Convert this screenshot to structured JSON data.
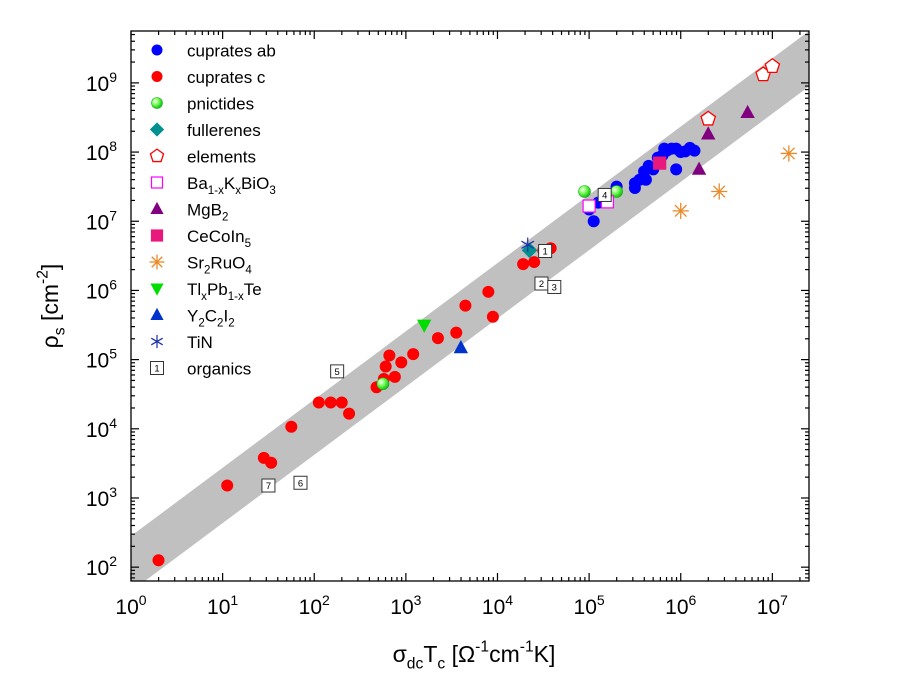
{
  "chart_data": {
    "type": "scatter",
    "scale": "log-log",
    "xlabel": {
      "base": "σ",
      "sub1": "dc",
      "mid": "T",
      "sub2": "c",
      "unit_open": " [Ω",
      "exp1": "-1",
      "mid2": "cm",
      "exp2": "-1",
      "unit_close": "K]"
    },
    "ylabel": {
      "base": "ρ",
      "sub": "s",
      "unit_open": " [cm",
      "exp": "-2",
      "unit_close": "]"
    },
    "xlim_log": [
      0,
      7.4
    ],
    "ylim_log": [
      1.8,
      9.75
    ],
    "x_ticks": [
      {
        "base": "10",
        "exp": "0",
        "log": 0
      },
      {
        "base": "10",
        "exp": "1",
        "log": 1
      },
      {
        "base": "10",
        "exp": "2",
        "log": 2
      },
      {
        "base": "10",
        "exp": "3",
        "log": 3
      },
      {
        "base": "10",
        "exp": "4",
        "log": 4
      },
      {
        "base": "10",
        "exp": "5",
        "log": 5
      },
      {
        "base": "10",
        "exp": "6",
        "log": 6
      },
      {
        "base": "10",
        "exp": "7",
        "log": 7
      }
    ],
    "y_ticks": [
      {
        "base": "10",
        "exp": "2",
        "log": 2
      },
      {
        "base": "10",
        "exp": "3",
        "log": 3
      },
      {
        "base": "10",
        "exp": "4",
        "log": 4
      },
      {
        "base": "10",
        "exp": "5",
        "log": 5
      },
      {
        "base": "10",
        "exp": "6",
        "log": 6
      },
      {
        "base": "10",
        "exp": "7",
        "log": 7
      },
      {
        "base": "10",
        "exp": "8",
        "log": 8
      },
      {
        "base": "10",
        "exp": "9",
        "log": 9
      }
    ],
    "band": {
      "description": "scaling band rho_s ~ sigma_dc*Tc",
      "color": "#c0c0c0",
      "lower_edge_log": [
        [
          0.0,
          1.65
        ],
        [
          7.4,
          8.95
        ]
      ],
      "upper_edge_log": [
        [
          0.0,
          2.45
        ],
        [
          7.4,
          9.75
        ]
      ]
    },
    "series": [
      {
        "name": "cuprates ab",
        "label_parts": [
          {
            "t": "cuprates ab"
          }
        ],
        "marker": "circle",
        "color": "#0000ff",
        "filled": true,
        "points": [
          [
            5.0,
            7.17
          ],
          [
            5.05,
            7.0
          ],
          [
            5.1,
            7.27
          ],
          [
            5.3,
            7.5
          ],
          [
            5.5,
            7.48
          ],
          [
            5.55,
            7.6
          ],
          [
            5.6,
            7.72
          ],
          [
            5.65,
            7.8
          ],
          [
            5.7,
            7.75
          ],
          [
            5.75,
            7.92
          ],
          [
            5.8,
            7.95
          ],
          [
            5.85,
            8.02
          ],
          [
            5.9,
            8.05
          ],
          [
            5.95,
            8.05
          ],
          [
            6.0,
            8.0
          ],
          [
            6.05,
            8.01
          ],
          [
            6.1,
            8.06
          ],
          [
            6.15,
            8.02
          ],
          [
            5.62,
            7.6
          ],
          [
            5.95,
            7.75
          ],
          [
            5.5,
            7.55
          ],
          [
            5.82,
            8.05
          ]
        ]
      },
      {
        "name": "cuprates c",
        "label_parts": [
          {
            "t": "cuprates c"
          }
        ],
        "marker": "circle",
        "color": "#ff0000",
        "filled": true,
        "points": [
          [
            0.3,
            2.1
          ],
          [
            1.05,
            3.18
          ],
          [
            1.45,
            3.58
          ],
          [
            1.53,
            3.51
          ],
          [
            1.75,
            4.03
          ],
          [
            2.05,
            4.38
          ],
          [
            2.18,
            4.38
          ],
          [
            2.3,
            4.38
          ],
          [
            2.38,
            4.22
          ],
          [
            2.68,
            4.6
          ],
          [
            2.76,
            4.72
          ],
          [
            2.78,
            4.9
          ],
          [
            2.82,
            5.06
          ],
          [
            2.88,
            4.75
          ],
          [
            2.95,
            4.96
          ],
          [
            3.08,
            5.08
          ],
          [
            3.35,
            5.31
          ],
          [
            3.55,
            5.39
          ],
          [
            3.65,
            5.78
          ],
          [
            3.9,
            5.98
          ],
          [
            3.95,
            5.62
          ],
          [
            4.28,
            6.38
          ],
          [
            4.4,
            6.41
          ],
          [
            4.5,
            6.58
          ],
          [
            4.58,
            6.61
          ]
        ]
      },
      {
        "name": "pnictides",
        "label_parts": [
          {
            "t": "pnictides"
          }
        ],
        "marker": "sphere",
        "color": "#22dd22",
        "filled": true,
        "points": [
          [
            2.75,
            4.65
          ],
          [
            4.95,
            7.43
          ],
          [
            5.3,
            7.43
          ]
        ]
      },
      {
        "name": "fullerenes",
        "label_parts": [
          {
            "t": "fullerenes"
          }
        ],
        "marker": "diamond",
        "color": "#009090",
        "filled": true,
        "points": [
          [
            4.35,
            6.58
          ]
        ]
      },
      {
        "name": "elements",
        "label_parts": [
          {
            "t": "elements"
          }
        ],
        "marker": "pentagon",
        "color": "#ff0000",
        "filled": false,
        "points": [
          [
            6.3,
            8.48
          ],
          [
            6.9,
            9.12
          ],
          [
            7.0,
            9.24
          ]
        ]
      },
      {
        "name": "Ba1-xKxBiO3",
        "label_parts": [
          {
            "t": "Ba"
          },
          {
            "t": "1-x",
            "s": "sub"
          },
          {
            "t": "K"
          },
          {
            "t": "x",
            "s": "sub"
          },
          {
            "t": "BiO"
          },
          {
            "t": "3",
            "s": "sub"
          }
        ],
        "marker": "square",
        "color": "#ff00ff",
        "filled": false,
        "points": [
          [
            5.0,
            7.22
          ],
          [
            5.2,
            7.28
          ]
        ]
      },
      {
        "name": "MgB2",
        "label_parts": [
          {
            "t": "MgB"
          },
          {
            "t": "2",
            "s": "sub"
          }
        ],
        "marker": "triangle",
        "color": "#800080",
        "filled": true,
        "points": [
          [
            6.2,
            7.75
          ],
          [
            6.3,
            8.26
          ],
          [
            6.73,
            8.57
          ]
        ]
      },
      {
        "name": "CeCoIn5",
        "label_parts": [
          {
            "t": "CeCoIn"
          },
          {
            "t": "5",
            "s": "sub"
          }
        ],
        "marker": "square",
        "color": "#e8187c",
        "filled": true,
        "points": [
          [
            5.77,
            7.84
          ]
        ]
      },
      {
        "name": "Sr2RuO4",
        "label_parts": [
          {
            "t": "Sr"
          },
          {
            "t": "2",
            "s": "sub"
          },
          {
            "t": "RuO"
          },
          {
            "t": "4",
            "s": "sub"
          }
        ],
        "marker": "star",
        "color": "#e98a2a",
        "filled": false,
        "points": [
          [
            6.0,
            7.15
          ],
          [
            6.42,
            7.43
          ],
          [
            7.18,
            7.98
          ]
        ]
      },
      {
        "name": "TlxPb1-xTe",
        "label_parts": [
          {
            "t": "Tl"
          },
          {
            "t": "x",
            "s": "sub"
          },
          {
            "t": "Pb"
          },
          {
            "t": "1-x",
            "s": "sub"
          },
          {
            "t": "Te"
          }
        ],
        "marker": "triangle-down",
        "color": "#00dd00",
        "filled": true,
        "points": [
          [
            3.2,
            5.5
          ]
        ]
      },
      {
        "name": "Y2C2I2",
        "label_parts": [
          {
            "t": "Y"
          },
          {
            "t": "2",
            "s": "sub"
          },
          {
            "t": "C"
          },
          {
            "t": "2",
            "s": "sub"
          },
          {
            "t": "I"
          },
          {
            "t": "2",
            "s": "sub"
          }
        ],
        "marker": "triangle",
        "color": "#0033cc",
        "filled": true,
        "points": [
          [
            3.6,
            5.17
          ]
        ]
      },
      {
        "name": "TiN",
        "label_parts": [
          {
            "t": "TiN"
          }
        ],
        "marker": "asterisk",
        "color": "#1a2eaa",
        "filled": false,
        "points": [
          [
            4.33,
            6.66
          ]
        ]
      },
      {
        "name": "organics",
        "label_parts": [
          {
            "t": "organics"
          }
        ],
        "marker": "numbered-square",
        "color": "#333333",
        "filled": false,
        "points": [
          {
            "x": 4.52,
            "y": 6.57,
            "n": "1"
          },
          {
            "x": 4.48,
            "y": 6.1,
            "n": "2"
          },
          {
            "x": 4.62,
            "y": 6.05,
            "n": "3"
          },
          {
            "x": 5.17,
            "y": 7.38,
            "n": "4"
          },
          {
            "x": 2.25,
            "y": 4.83,
            "n": "5"
          },
          {
            "x": 1.85,
            "y": 3.22,
            "n": "6"
          },
          {
            "x": 1.5,
            "y": 3.18,
            "n": "7"
          }
        ]
      }
    ]
  }
}
